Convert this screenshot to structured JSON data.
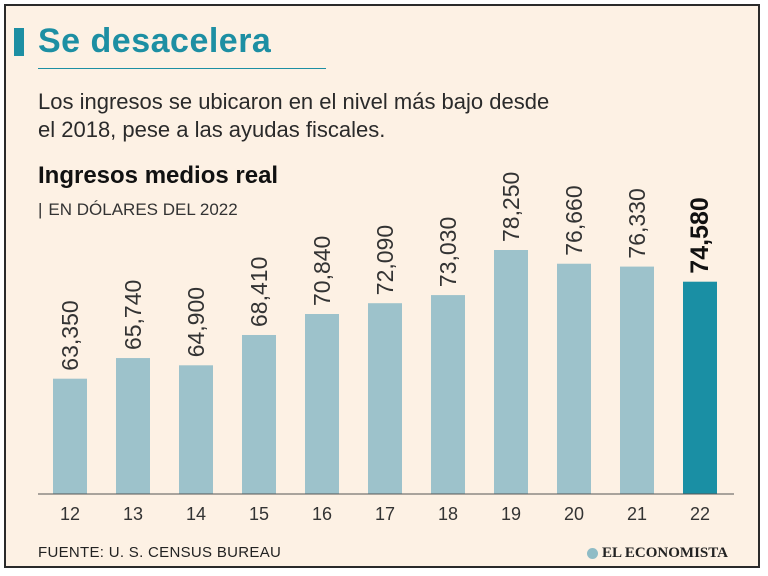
{
  "header": {
    "title": "Se desacelera",
    "subtitle": "Los ingresos se ubicaron en el nivel más bajo desde el 2018, pese a las ayudas fiscales."
  },
  "chart_header": {
    "title": "Ingresos medios real",
    "unit_pipe": "|",
    "unit": "EN DÓLARES DEL 2022"
  },
  "footer": {
    "source": "FUENTE: U. S. CENSUS BUREAU",
    "brand": "EL ECONOMISTA",
    "brand_icon": "el-economista-logo-icon"
  },
  "colors": {
    "accent": "#1d8fa3",
    "bar": "#9dc2cb",
    "bar_highlight": "#1a8fa4",
    "background": "#fdf1e4"
  },
  "chart_data": {
    "type": "bar",
    "title": "Ingresos medios real",
    "ylabel": "EN DÓLARES DEL 2022",
    "xlabel": "",
    "categories": [
      "12",
      "13",
      "14",
      "15",
      "16",
      "17",
      "18",
      "19",
      "20",
      "21",
      "22"
    ],
    "values": [
      63350,
      65740,
      64900,
      68410,
      70840,
      72090,
      73030,
      78250,
      76660,
      76330,
      74580
    ],
    "value_labels": [
      "63,350",
      "65,740",
      "64,900",
      "68,410",
      "70,840",
      "72,090",
      "73,030",
      "78,250",
      "76,660",
      "76,330",
      "74,580"
    ],
    "highlight_index": 10,
    "ylim": [
      50000,
      80000
    ],
    "grid": false,
    "legend": "none"
  }
}
